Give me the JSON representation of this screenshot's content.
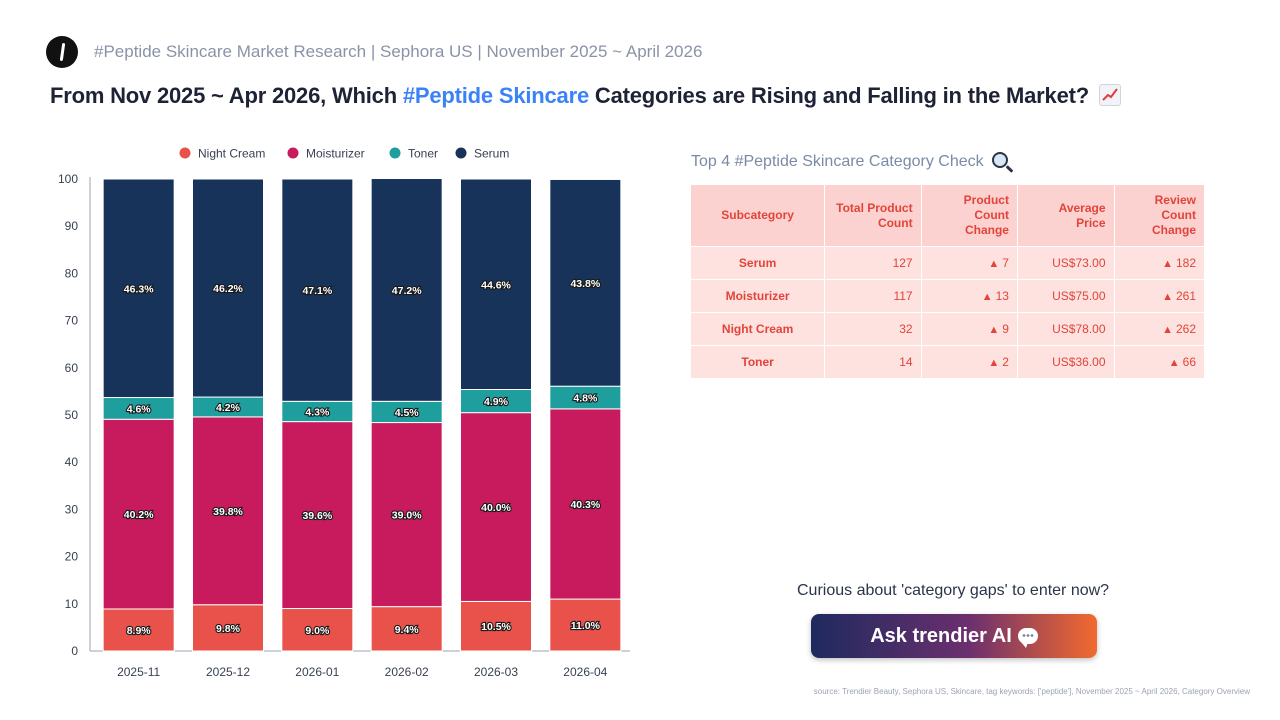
{
  "header": {
    "subtitle": "#Peptide Skincare Market Research | Sephora US | November 2025 ~ April 2026",
    "headline_before": "From Nov 2025 ~ Apr 2026, Which ",
    "headline_highlight": "#Peptide Skincare",
    "headline_after": " Categories are Rising and Falling in the Market?",
    "headline_emoji": "chart-increasing-icon"
  },
  "chart_data": {
    "type": "bar",
    "stacked": true,
    "categories": [
      "2025-11",
      "2025-12",
      "2026-01",
      "2026-02",
      "2026-03",
      "2026-04"
    ],
    "series": [
      {
        "name": "Night Cream",
        "color": "#e8524a",
        "values": [
          8.9,
          9.8,
          9.0,
          9.4,
          10.5,
          11.0
        ]
      },
      {
        "name": "Moisturizer",
        "color": "#c81b5e",
        "values": [
          40.2,
          39.8,
          39.6,
          39.0,
          40.0,
          40.3
        ]
      },
      {
        "name": "Toner",
        "color": "#1e9e9c",
        "values": [
          4.6,
          4.2,
          4.3,
          4.5,
          4.9,
          4.8
        ]
      },
      {
        "name": "Serum",
        "color": "#17335a",
        "values": [
          46.3,
          46.2,
          47.1,
          47.2,
          44.6,
          43.8
        ]
      }
    ],
    "ylim": [
      0,
      100
    ],
    "yticks": [
      0,
      10,
      20,
      30,
      40,
      50,
      60,
      70,
      80,
      90,
      100
    ],
    "grid": false,
    "legend_position": "top",
    "data_label_suffix": "%"
  },
  "table": {
    "title": "Top 4 #Peptide Skincare Category Check",
    "title_icon": "magnifying-glass-icon",
    "headers": [
      "Subcategory",
      "Total Product Count",
      "Product Count Change",
      "Average Price",
      "Review Count Change"
    ],
    "rows": [
      {
        "subcategory": "Serum",
        "total": "127",
        "count_change": "7",
        "avg_price": "US$73.00",
        "review_change": "182"
      },
      {
        "subcategory": "Moisturizer",
        "total": "117",
        "count_change": "13",
        "avg_price": "US$75.00",
        "review_change": "261"
      },
      {
        "subcategory": "Night Cream",
        "total": "32",
        "count_change": "9",
        "avg_price": "US$78.00",
        "review_change": "262"
      },
      {
        "subcategory": "Toner",
        "total": "14",
        "count_change": "2",
        "avg_price": "US$36.00",
        "review_change": "66"
      }
    ],
    "up_symbol": "▲",
    "accent_color": "#e2443a"
  },
  "cta": {
    "prompt": "Curious about 'category gaps' to enter now?",
    "button_label": "Ask trendier AI",
    "button_icon": "speech-bubble-icon"
  },
  "source": "source: Trendier Beauty, Sephora US, Skincare, tag keywords: ['peptide'], November 2025 ~ April 2026, Category Overview"
}
